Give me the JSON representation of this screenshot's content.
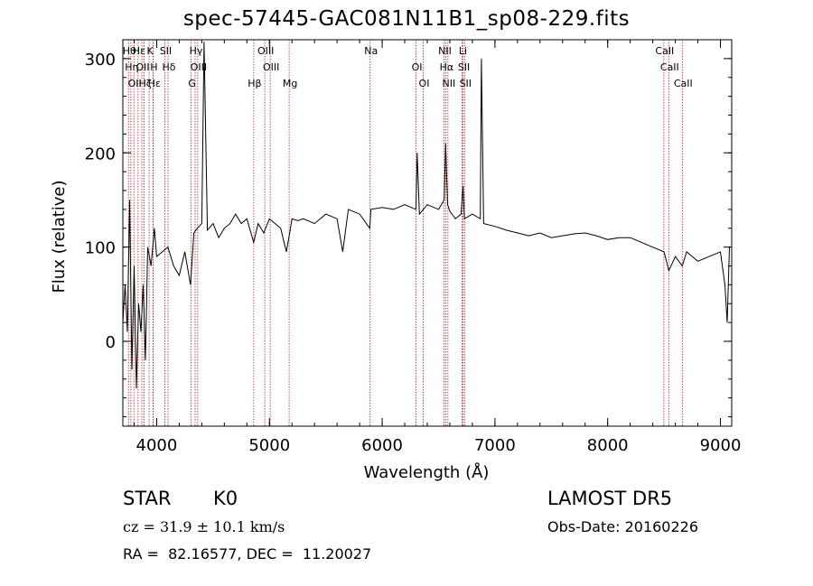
{
  "chart_data": {
    "type": "line",
    "title": "spec-57445-GAC081N11B1_sp08-229.fits",
    "xlabel": "Wavelength (Å)",
    "ylabel": "Flux (relative)",
    "xlim": [
      3700,
      9100
    ],
    "ylim": [
      -90,
      320
    ],
    "xticks": [
      "4000",
      "5000",
      "6000",
      "7000",
      "8000",
      "9000"
    ],
    "yticks": [
      "0",
      "100",
      "200",
      "300"
    ],
    "series": [
      {
        "color": "#000000",
        "x": [
          3700,
          3720,
          3740,
          3760,
          3780,
          3800,
          3820,
          3840,
          3860,
          3880,
          3900,
          3920,
          3950,
          3980,
          4000,
          4050,
          4100,
          4150,
          4200,
          4250,
          4300,
          4330,
          4360,
          4400,
          4420,
          4450,
          4500,
          4550,
          4600,
          4650,
          4700,
          4750,
          4800,
          4860,
          4900,
          4950,
          5000,
          5050,
          5100,
          5150,
          5180,
          5200,
          5250,
          5300,
          5400,
          5500,
          5600,
          5650,
          5700,
          5800,
          5890,
          5900,
          6000,
          6100,
          6200,
          6300,
          6310,
          6330,
          6400,
          6500,
          6550,
          6563,
          6580,
          6600,
          6650,
          6700,
          6717,
          6730,
          6800,
          6870,
          6880,
          6900,
          7000,
          7100,
          7200,
          7300,
          7400,
          7500,
          7600,
          7700,
          7800,
          7900,
          8000,
          8100,
          8200,
          8300,
          8400,
          8500,
          8542,
          8600,
          8662,
          8700,
          8800,
          8900,
          9000,
          9040,
          9060,
          9080
        ],
        "y": [
          20,
          60,
          10,
          150,
          -30,
          80,
          -50,
          40,
          10,
          60,
          -20,
          100,
          80,
          120,
          90,
          95,
          100,
          80,
          70,
          95,
          60,
          115,
          120,
          125,
          318,
          118,
          125,
          110,
          120,
          125,
          135,
          125,
          130,
          105,
          125,
          115,
          130,
          125,
          120,
          95,
          115,
          130,
          128,
          130,
          125,
          135,
          130,
          95,
          140,
          135,
          120,
          140,
          142,
          140,
          145,
          140,
          200,
          135,
          145,
          140,
          150,
          210,
          145,
          138,
          130,
          135,
          165,
          130,
          135,
          130,
          300,
          125,
          122,
          118,
          115,
          112,
          115,
          110,
          112,
          114,
          115,
          112,
          108,
          110,
          110,
          105,
          100,
          95,
          75,
          90,
          80,
          95,
          85,
          90,
          95,
          60,
          20,
          100
        ]
      }
    ],
    "lines": [
      {
        "x": 3750,
        "label": "Hθ"
      },
      {
        "x": 3771,
        "label": "Hη"
      },
      {
        "x": 3798,
        "label": "OII"
      },
      {
        "x": 3835,
        "label": "Hε"
      },
      {
        "x": 3869,
        "label": "OII"
      },
      {
        "x": 3889,
        "label": "Hζ"
      },
      {
        "x": 3933,
        "label": "K"
      },
      {
        "x": 3968,
        "label": "H"
      },
      {
        "x": 3970,
        "label": "Hε"
      },
      {
        "x": 4072,
        "label": "SII"
      },
      {
        "x": 4101,
        "label": "Hδ"
      },
      {
        "x": 4305,
        "label": "G"
      },
      {
        "x": 4341,
        "label": "Hγ"
      },
      {
        "x": 4364,
        "label": "OIII"
      },
      {
        "x": 4861,
        "label": "Hβ"
      },
      {
        "x": 4959,
        "label": "OIII"
      },
      {
        "x": 5007,
        "label": "OIII"
      },
      {
        "x": 5175,
        "label": "Mg"
      },
      {
        "x": 5893,
        "label": "Na"
      },
      {
        "x": 6300,
        "label": "OI"
      },
      {
        "x": 6364,
        "label": "OI"
      },
      {
        "x": 6548,
        "label": "NII"
      },
      {
        "x": 6563,
        "label": "Hα"
      },
      {
        "x": 6583,
        "label": "NII"
      },
      {
        "x": 6708,
        "label": "Li"
      },
      {
        "x": 6717,
        "label": "SII"
      },
      {
        "x": 6731,
        "label": "SII"
      },
      {
        "x": 8498,
        "label": "CaII"
      },
      {
        "x": 8542,
        "label": "CaII"
      },
      {
        "x": 8662,
        "label": "CaII"
      }
    ]
  },
  "info": {
    "object_class": "STAR",
    "subclass": "K0",
    "survey": "LAMOST DR5",
    "cz": "cz = 31.9 ± 10.1 km/s",
    "obs_date": "Obs-Date: 20160226",
    "coords": "RA =  82.16577, DEC =  11.20027"
  },
  "colors": {
    "spectrum": "#000000",
    "line_markers": "#b22222",
    "background": "#ffffff"
  }
}
